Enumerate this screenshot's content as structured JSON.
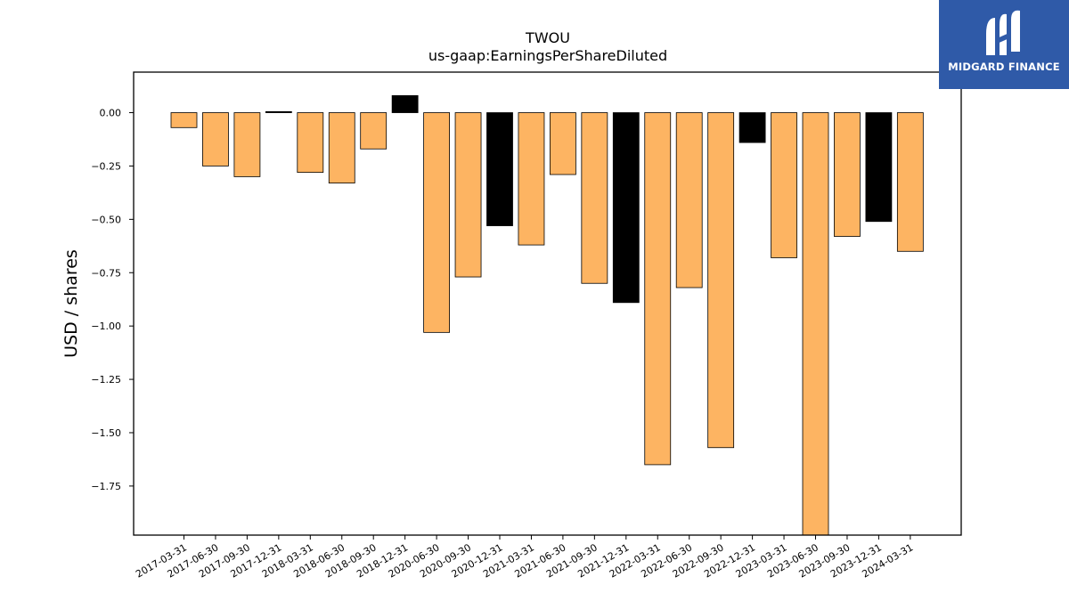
{
  "brand": {
    "name": "MIDGARD FINANCE",
    "bg_color": "#2f5aa8"
  },
  "chart_data": {
    "type": "bar",
    "title": "TWOU",
    "subtitle": "us-gaap:EarningsPerShareDiluted",
    "xlabel": "",
    "ylabel": "USD / shares",
    "ylim": [
      -1.98,
      0.19
    ],
    "yticks": [
      0.0,
      -0.25,
      -0.5,
      -0.75,
      -1.0,
      -1.25,
      -1.5,
      -1.75
    ],
    "ytick_labels": [
      "0.00",
      "−0.25",
      "−0.50",
      "−0.75",
      "−1.00",
      "−1.25",
      "−1.50",
      "−1.75"
    ],
    "grid": false,
    "categories": [
      "2017-03-31",
      "2017-06-30",
      "2017-09-30",
      "2017-12-31",
      "2018-03-31",
      "2018-06-30",
      "2018-09-30",
      "2018-12-31",
      "2020-06-30",
      "2020-09-30",
      "2020-12-31",
      "2021-03-31",
      "2021-06-30",
      "2021-09-30",
      "2021-12-31",
      "2022-03-31",
      "2022-06-30",
      "2022-09-30",
      "2022-12-31",
      "2023-03-31",
      "2023-06-30",
      "2023-09-30",
      "2023-12-31",
      "2024-03-31"
    ],
    "values": [
      -0.07,
      -0.25,
      -0.3,
      0.005,
      -0.28,
      -0.33,
      -0.17,
      0.08,
      -1.03,
      -0.77,
      -0.53,
      -0.62,
      -0.29,
      -0.8,
      -0.89,
      -1.65,
      -0.82,
      -1.57,
      -0.14,
      -0.68,
      -1.98,
      -0.58,
      -0.51,
      -0.65
    ],
    "quarter_end": [
      false,
      false,
      false,
      true,
      false,
      false,
      false,
      true,
      false,
      false,
      true,
      false,
      false,
      false,
      true,
      false,
      false,
      false,
      true,
      false,
      false,
      false,
      true,
      false
    ],
    "colors": {
      "quarter": "#fdb462",
      "year_end": "#000000",
      "edge": "#000000"
    }
  }
}
